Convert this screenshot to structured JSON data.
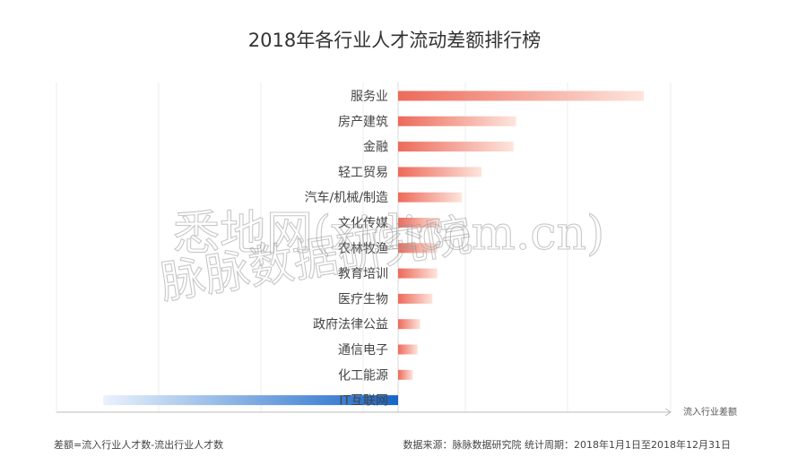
{
  "chart_data": {
    "type": "bar",
    "orientation": "horizontal",
    "title": "2018年各行业人才流动差额排行榜",
    "categories": [
      "服务业",
      "房产建筑",
      "金融",
      "轻工贸易",
      "汽车/机械/制造",
      "文化传媒",
      "农林牧渔",
      "教育培训",
      "医疗生物",
      "政府法律公益",
      "通信电子",
      "化工能源",
      "IT互联网"
    ],
    "values": [
      100,
      48,
      47,
      34,
      26,
      17,
      16,
      16,
      14,
      9,
      8,
      6,
      -120
    ],
    "xlabel": "流入行业差额",
    "ylabel": "",
    "xlim": [
      -150,
      114
    ],
    "grid": true,
    "legend": "none",
    "colors": {
      "positive_start": "#ed6a5a",
      "positive_end": "#fde5dd",
      "negative_start": "#1565c8",
      "negative_end": "#eaf2fc",
      "grid": "#ececec",
      "axis": "#bbbbbb"
    }
  },
  "footnote": "差额=流入行业人才数-流出行业人才数",
  "source": "数据来源：脉脉数据研究院   统计周期：2018年1月1日至2018年12月31日",
  "watermark": {
    "line1": "悉地网(xidicom.cn)",
    "line2": "脉脉数据研究院"
  }
}
